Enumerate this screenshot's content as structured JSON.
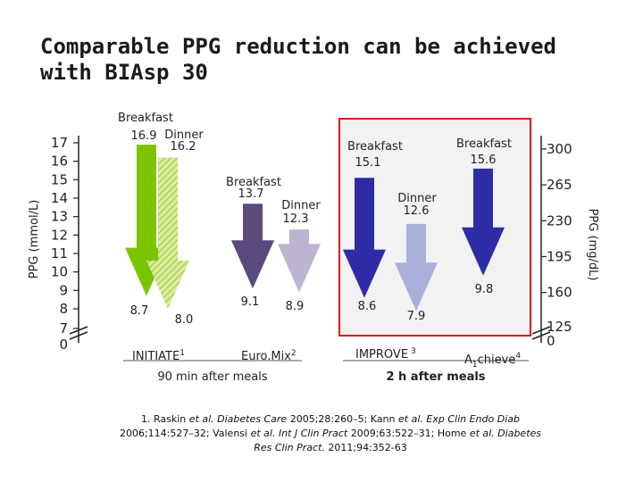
{
  "slide": {
    "title_line1": "Comparable PPG reduction can be achieved",
    "title_line2": "with BIAsp 30"
  },
  "colors": {
    "highlight_bg": "#f2f2f2",
    "highlight_border": "#e01818",
    "initiate_breakfast": "#7cc400",
    "initiate_dinner": "#d8ec9c",
    "euromix_breakfast": "#5b4a7e",
    "euromix_dinner": "#bcb4d0",
    "improve_breakfast": "#2d2ca6",
    "improve_dinner": "#aab0dc",
    "achieve_breakfast": "#2d2ca6"
  },
  "chart_data": {
    "type": "arrow-change",
    "y_left_label": "PPG (mmol/L)",
    "y_right_label": "PPG (mg/dL)",
    "y_left_ticks": [
      "0",
      "7",
      "8",
      "9",
      "10",
      "11",
      "12",
      "13",
      "14",
      "15",
      "16",
      "17"
    ],
    "y_right_ticks": [
      "0",
      "125",
      "160",
      "195",
      "230",
      "265",
      "300"
    ],
    "y_range_mmol": [
      7,
      17
    ],
    "series": [
      {
        "name": "Breakfast",
        "study": "INITIATE",
        "study_sup": "1",
        "start": 16.9,
        "end": 8.7,
        "start_label": "16.9",
        "end_label": "8.7",
        "name_label": "Breakfast",
        "style": "initiate_breakfast"
      },
      {
        "name": "Dinner",
        "study": "INITIATE",
        "start": 16.2,
        "end": 8.0,
        "start_label": "16.2",
        "end_label": "8.0",
        "name_label": "Dinner",
        "style": "initiate_dinner"
      },
      {
        "name": "Breakfast",
        "study": "EuroMix",
        "study_sup": "2",
        "start": 13.7,
        "end": 9.1,
        "start_label": "13.7",
        "end_label": "9.1",
        "name_label": "Breakfast",
        "style": "euromix_breakfast"
      },
      {
        "name": "Dinner",
        "study": "EuroMix",
        "start": 12.3,
        "end": 8.9,
        "start_label": "12.3",
        "end_label": "8.9",
        "name_label": "Dinner",
        "style": "euromix_dinner"
      },
      {
        "name": "Breakfast",
        "study": "IMPROVE",
        "study_sup": "3",
        "start": 15.1,
        "end": 8.6,
        "start_label": "15.1",
        "end_label": "8.6",
        "name_label": "Breakfast",
        "style": "improve_breakfast"
      },
      {
        "name": "Dinner",
        "study": "IMPROVE",
        "start": 12.6,
        "end": 7.9,
        "start_label": "12.6",
        "end_label": "7.9",
        "name_label": "Dinner",
        "style": "improve_dinner"
      },
      {
        "name": "Breakfast",
        "study": "A1chieve",
        "study_sup": "4",
        "start": 15.6,
        "end": 9.8,
        "start_label": "15.6",
        "end_label": "9.8",
        "name_label": "Breakfast",
        "style": "achieve_breakfast"
      }
    ],
    "studies": [
      {
        "name": "INITIATE",
        "sup": "1"
      },
      {
        "name": "Euro.Mix",
        "sup": "2"
      },
      {
        "name": "IMPROVE",
        "sup": "3"
      },
      {
        "name_prefix": "A",
        "name_sub": "1",
        "name_suffix": "chieve",
        "sup": "4"
      }
    ],
    "timing_labels": [
      "90 min after meals",
      "2 h after meals"
    ]
  },
  "footnote": {
    "part1": "1. Raskin ",
    "et_al_1": "et al.",
    "part2": " Diabetes Care",
    "part3": " 2005;28:260–5; Kann ",
    "et_al_2": "et al.",
    "part4": " Exp Clin Endo Diab",
    "part5": " 2006;114:527–32; Valensi ",
    "et_al_3": "et al.",
    "part6": " Int J Clin Pract",
    "part7": " 2009;63:522–31; Home ",
    "et_al_4": "et al.",
    "part8": " Diabetes Res Clin Pract.",
    "part9": " 2011;94:352-63"
  }
}
